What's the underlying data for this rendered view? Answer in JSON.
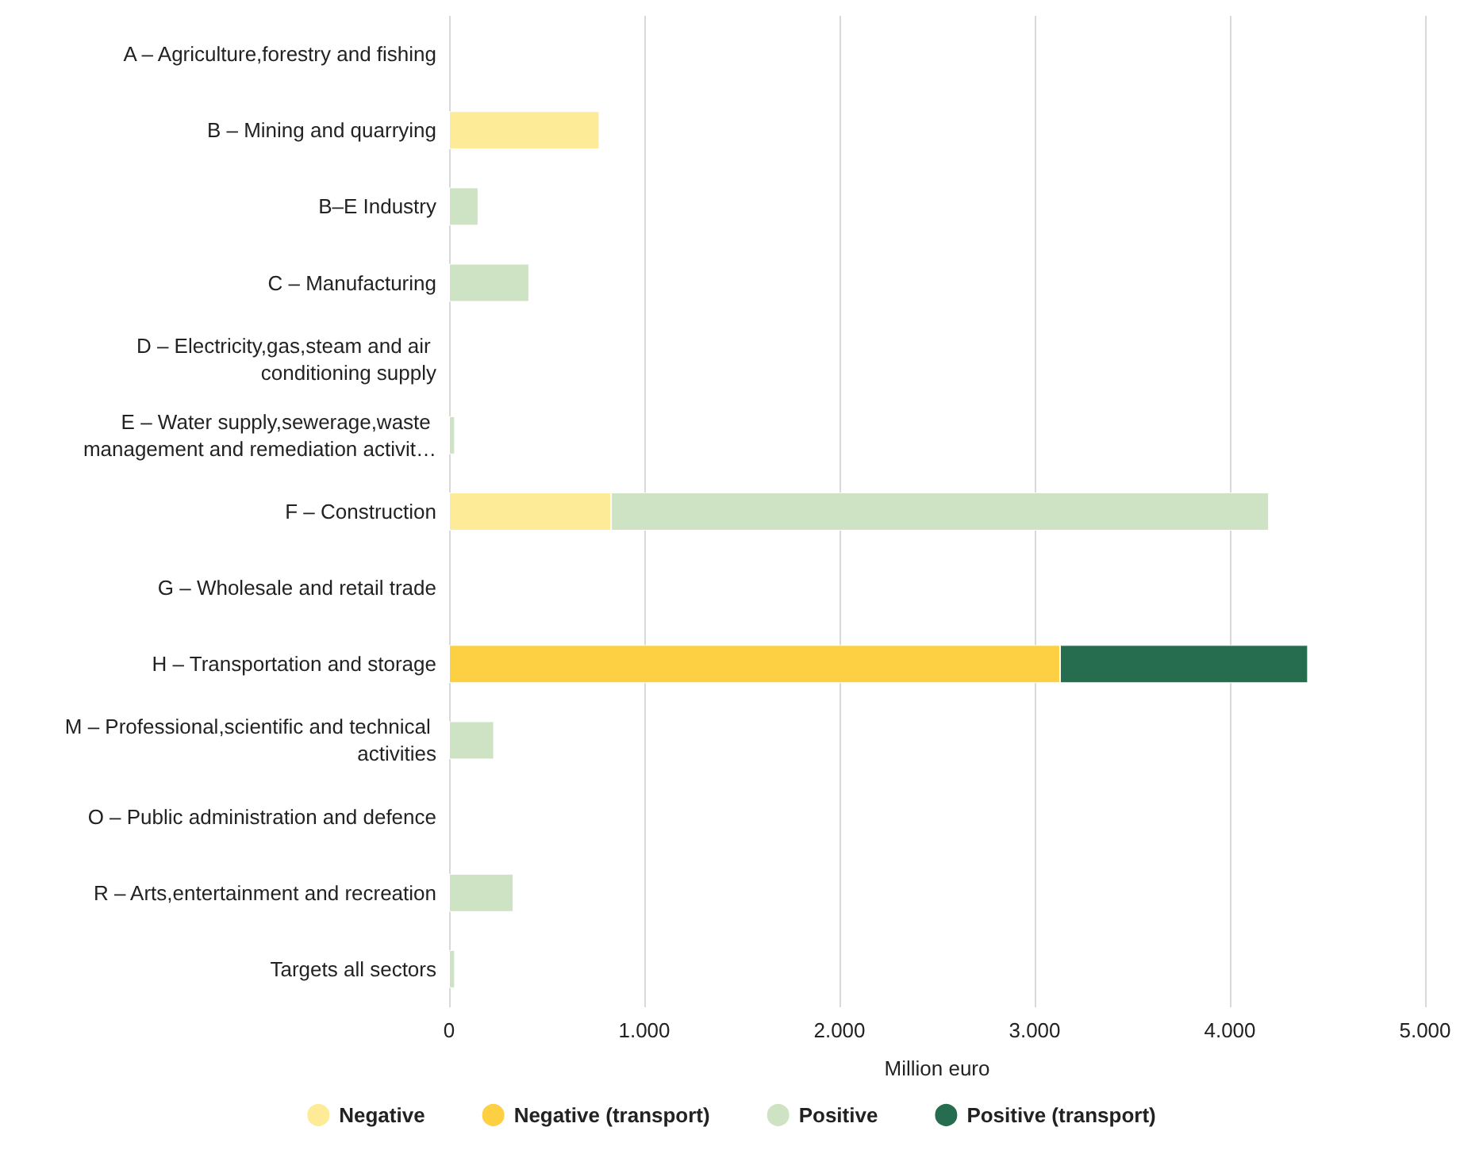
{
  "chart_data": {
    "type": "bar",
    "orientation": "horizontal",
    "stacked": true,
    "xlabel": "Million euro",
    "categories": [
      "A – Agriculture,forestry and fishing",
      "B – Mining and quarrying",
      "B–E Industry",
      "C – Manufacturing",
      "D – Electricity,gas,steam and air conditioning supply",
      "E – Water supply,sewerage,waste management and remediation activit…",
      "F – Construction",
      "G – Wholesale and retail trade",
      "H – Transportation and storage",
      "M – Professional,scientific and technical activities",
      "O – Public administration and defence",
      "R – Arts,entertainment and recreation",
      "Targets all sectors"
    ],
    "series": [
      {
        "name": "Negative",
        "color": "#feeb98",
        "values": [
          null,
          770,
          null,
          null,
          null,
          null,
          830,
          null,
          null,
          null,
          null,
          null,
          null
        ]
      },
      {
        "name": "Negative (transport)",
        "color": "#fdd043",
        "values": [
          null,
          null,
          null,
          null,
          null,
          null,
          null,
          null,
          3130,
          null,
          null,
          null,
          null
        ]
      },
      {
        "name": "Positive",
        "color": "#cde3c4",
        "values": [
          null,
          null,
          150,
          410,
          null,
          30,
          3370,
          null,
          null,
          230,
          null,
          330,
          30
        ]
      },
      {
        "name": "Positive (transport)",
        "color": "#266d50",
        "values": [
          null,
          null,
          null,
          null,
          null,
          null,
          null,
          null,
          1270,
          null,
          null,
          null,
          null
        ]
      }
    ],
    "xlim": [
      0,
      5000
    ],
    "xticks": [
      {
        "value": 0,
        "label": "0"
      },
      {
        "value": 1000,
        "label": "1.000"
      },
      {
        "value": 2000,
        "label": "2.000"
      },
      {
        "value": 3000,
        "label": "3.000"
      },
      {
        "value": 4000,
        "label": "4.000"
      },
      {
        "value": 5000,
        "label": "5.000"
      }
    ],
    "grid": "x",
    "legend": "bottom"
  }
}
